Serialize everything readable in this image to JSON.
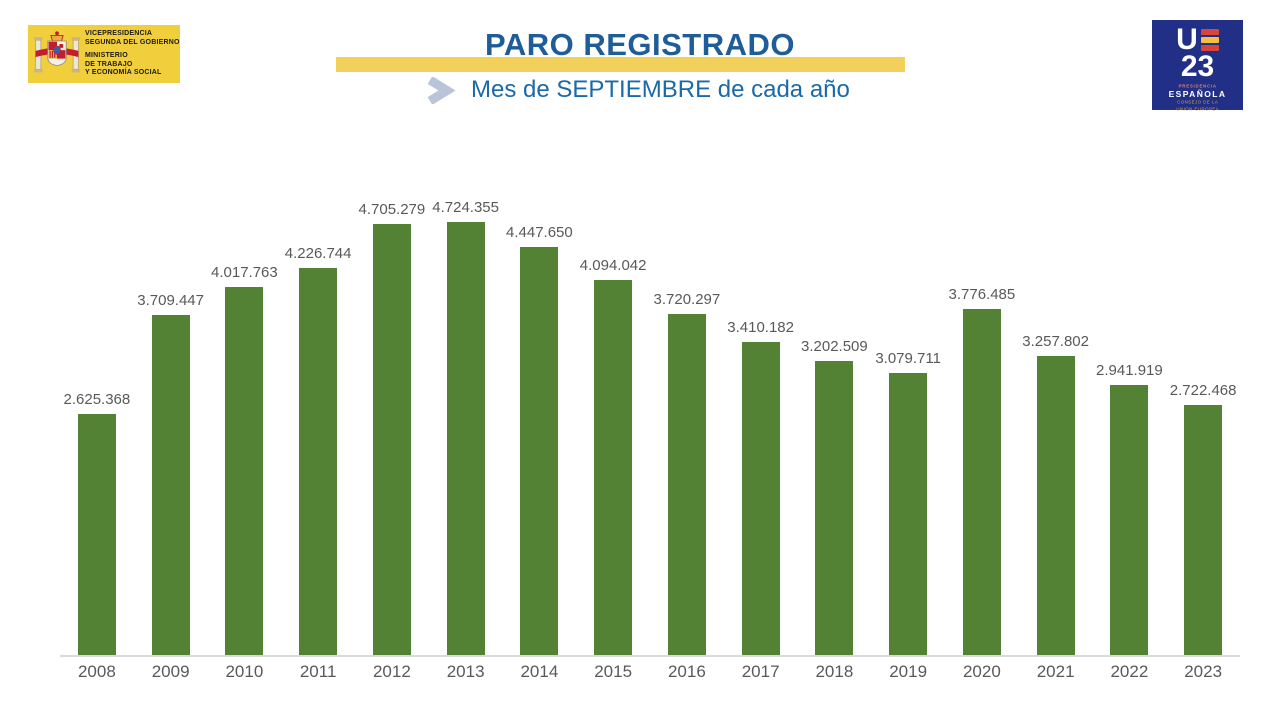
{
  "header": {
    "ministry_logo": {
      "department_lines": [
        "VICEPRESIDENCIA",
        "SEGUNDA DEL GOBIERNO"
      ],
      "ministry_lines": [
        "MINISTERIO",
        "DE TRABAJO",
        "Y ECONOMÍA SOCIAL"
      ]
    },
    "title": "PARO REGISTRADO",
    "subtitle": "Mes de SEPTIEMBRE de cada año",
    "eu_logo": {
      "letter_u": "U",
      "number": "23",
      "presidency_line1": "PRESIDENCIA",
      "presidency_line2": "ESPAÑOLA",
      "council_line1": "CONSEJO DE LA",
      "council_line2": "UNIÓN EUROPEA"
    }
  },
  "chart_data": {
    "type": "bar",
    "title": "PARO REGISTRADO",
    "subtitle": "Mes de SEPTIEMBRE de cada año",
    "categories": [
      "2008",
      "2009",
      "2010",
      "2011",
      "2012",
      "2013",
      "2014",
      "2015",
      "2016",
      "2017",
      "2018",
      "2019",
      "2020",
      "2021",
      "2022",
      "2023"
    ],
    "values": [
      2625368,
      3709447,
      4017763,
      4226744,
      4705279,
      4724355,
      4447650,
      4094042,
      3720297,
      3410182,
      3202509,
      3079711,
      3776485,
      3257802,
      2941919,
      2722468
    ],
    "value_labels": [
      "2.625.368",
      "3.709.447",
      "4.017.763",
      "4.226.744",
      "4.705.279",
      "4.724.355",
      "4.447.650",
      "4.094.042",
      "3.720.297",
      "3.410.182",
      "3.202.509",
      "3.079.711",
      "3.776.485",
      "3.257.802",
      "2.941.919",
      "2.722.468"
    ],
    "xlabel": "",
    "ylabel": "",
    "ylim": [
      0,
      4724355
    ],
    "grid": false,
    "legend": false,
    "bar_color": "#548235",
    "label_color": "#595959"
  },
  "colors": {
    "title_blue": "#1e5c9a",
    "subtitle_blue": "#1a6aa8",
    "accent_band_yellow": "#f2d05a",
    "ministry_yellow": "#f1ce3b",
    "eu_navy": "#222f87",
    "bar_green": "#548235",
    "axis_line_gray": "#d9d9d9",
    "chevron_blue_gray": "#b9c4d8",
    "flag_red": "#d8453a",
    "flag_yellow": "#f3c13d"
  }
}
